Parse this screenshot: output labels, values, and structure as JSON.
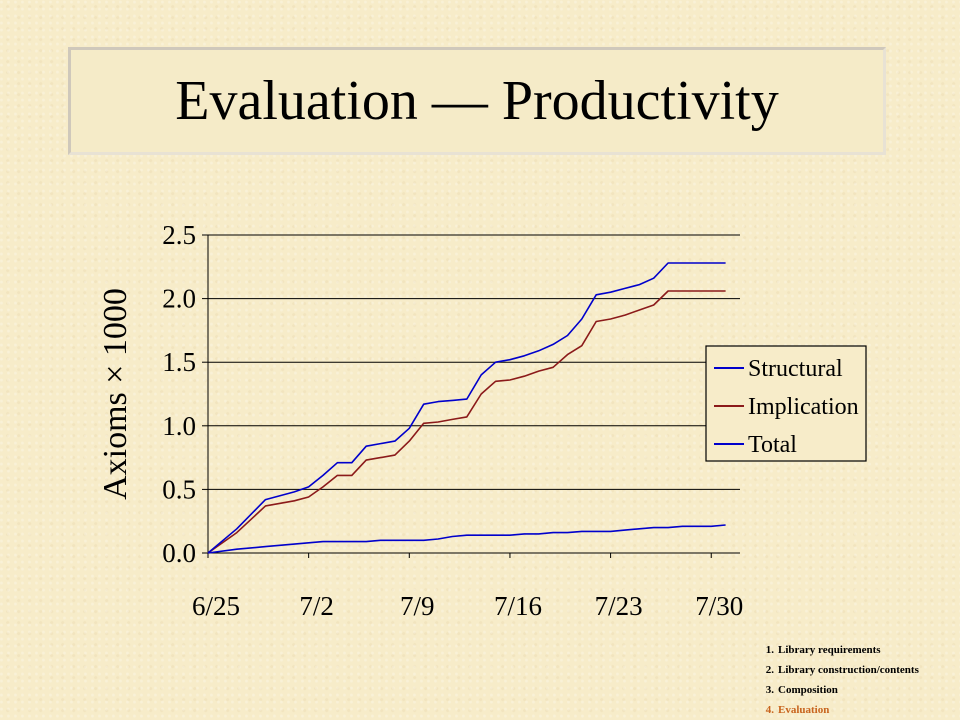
{
  "slide": {
    "title": "Evaluation — Productivity"
  },
  "outline": [
    {
      "num": "1.",
      "label": "Library requirements",
      "current": false
    },
    {
      "num": "2.",
      "label": "Library construction/contents",
      "current": false
    },
    {
      "num": "3.",
      "label": "Composition",
      "current": false
    },
    {
      "num": "4.",
      "label": "Evaluation",
      "current": true
    }
  ],
  "chart_data": {
    "type": "line",
    "title": "",
    "xlabel": "",
    "ylabel": "Axioms × 1000",
    "x_ticks": [
      "6/25",
      "7/2",
      "7/9",
      "7/16",
      "7/23",
      "7/30"
    ],
    "x_tick_days": [
      0,
      7,
      14,
      21,
      28,
      35
    ],
    "xlim": [
      0,
      37
    ],
    "ylim": [
      0,
      2.5
    ],
    "y_ticks": [
      "0.0",
      "0.5",
      "1.0",
      "1.5",
      "2.0",
      "2.5"
    ],
    "grid": true,
    "legend_position": "right",
    "series": [
      {
        "name": "Structural",
        "color": "#0000cc",
        "x": [
          0,
          2,
          4,
          6,
          7,
          8,
          9,
          10,
          11,
          12,
          13,
          14,
          15,
          16,
          17,
          18,
          19,
          20,
          21,
          22,
          23,
          24,
          25,
          26,
          27,
          28,
          29,
          30,
          31,
          32,
          33,
          34,
          35,
          36
        ],
        "values": [
          0.0,
          0.03,
          0.05,
          0.07,
          0.08,
          0.09,
          0.09,
          0.09,
          0.09,
          0.1,
          0.1,
          0.1,
          0.1,
          0.11,
          0.13,
          0.14,
          0.14,
          0.14,
          0.14,
          0.15,
          0.15,
          0.16,
          0.16,
          0.17,
          0.17,
          0.17,
          0.18,
          0.19,
          0.2,
          0.2,
          0.21,
          0.21,
          0.21,
          0.22
        ]
      },
      {
        "name": "Implication",
        "color": "#8b1a1a",
        "x": [
          0,
          2,
          4,
          6,
          7,
          8,
          9,
          10,
          11,
          12,
          13,
          14,
          15,
          16,
          17,
          18,
          19,
          20,
          21,
          22,
          23,
          24,
          25,
          26,
          27,
          28,
          29,
          30,
          31,
          32,
          33,
          34,
          35,
          36
        ],
        "values": [
          0.0,
          0.16,
          0.37,
          0.41,
          0.44,
          0.52,
          0.61,
          0.61,
          0.73,
          0.75,
          0.77,
          0.88,
          1.02,
          1.03,
          1.05,
          1.07,
          1.25,
          1.35,
          1.36,
          1.39,
          1.43,
          1.46,
          1.56,
          1.63,
          1.82,
          1.84,
          1.87,
          1.91,
          1.95,
          2.06,
          2.06,
          2.06,
          2.06,
          2.06
        ]
      },
      {
        "name": "Total",
        "color": "#0000cc",
        "x": [
          0,
          2,
          4,
          6,
          7,
          8,
          9,
          10,
          11,
          12,
          13,
          14,
          15,
          16,
          17,
          18,
          19,
          20,
          21,
          22,
          23,
          24,
          25,
          26,
          27,
          28,
          29,
          30,
          31,
          32,
          33,
          34,
          35,
          36
        ],
        "values": [
          0.0,
          0.19,
          0.42,
          0.48,
          0.52,
          0.61,
          0.71,
          0.71,
          0.84,
          0.86,
          0.88,
          0.98,
          1.17,
          1.19,
          1.2,
          1.21,
          1.4,
          1.5,
          1.52,
          1.55,
          1.59,
          1.64,
          1.71,
          1.84,
          2.03,
          2.05,
          2.08,
          2.11,
          2.16,
          2.28,
          2.28,
          2.28,
          2.28,
          2.28
        ]
      }
    ]
  }
}
